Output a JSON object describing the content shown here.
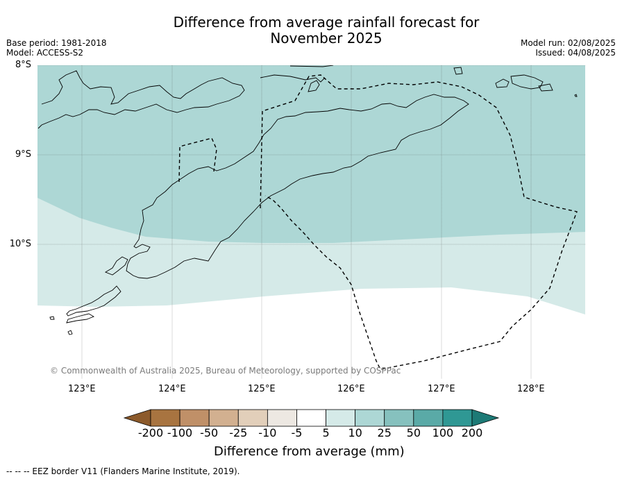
{
  "title_line1": "Difference from average rainfall forecast for",
  "title_line2": "November 2025",
  "base_period": "Base period: 1981-2018",
  "model": "Model: ACCESS-S2",
  "model_run": "Model run: 02/08/2025",
  "issued": "Issued: 04/08/2025",
  "lat_ticks": [
    "8°S",
    "9°S",
    "10°S"
  ],
  "lon_ticks": [
    "123°E",
    "124°E",
    "125°E",
    "126°E",
    "127°E",
    "128°E"
  ],
  "copyright": "© Commonwealth of Australia 2025, Bureau of Meteorology, supported by COSPPac",
  "colorbar": {
    "title": "Difference from average (mm)",
    "labels": [
      "-200",
      "-100",
      "-50",
      "-25",
      "-10",
      "-5",
      "5",
      "10",
      "25",
      "50",
      "100",
      "200"
    ],
    "colors": [
      "#8c5a2b",
      "#a87440",
      "#c09068",
      "#d2b090",
      "#e2cfba",
      "#ede8e2",
      "#ffffff",
      "#d5eae8",
      "#add7d5",
      "#86c1be",
      "#5aaaa7",
      "#2f9894",
      "#1d7a76"
    ]
  },
  "map": {
    "extent": {
      "lon": [
        122.5,
        128.6
      ],
      "lat": [
        -8.0,
        -11.35
      ]
    },
    "zones": [
      {
        "name": "10 to 25 mm",
        "color": "#add7d5"
      },
      {
        "name": "5 to 10 mm",
        "color": "#d5eae8"
      },
      {
        "name": "-5 to 5 mm",
        "color": "#ffffff"
      }
    ]
  },
  "footer": "--  --  -- EEZ border V11 (Flanders Marine Institute, 2019)."
}
